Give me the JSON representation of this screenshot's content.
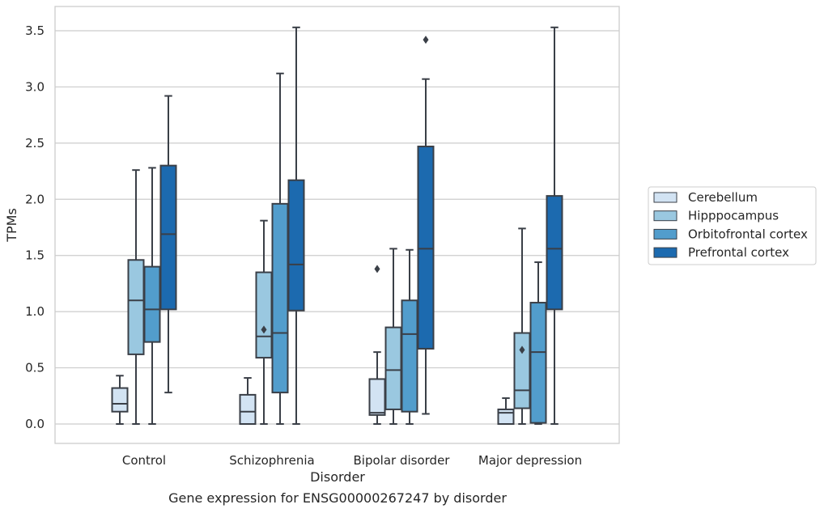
{
  "chart_data": {
    "type": "box",
    "caption": "Gene expression for ENSG00000267247 by disorder",
    "xlabel": "Disorder",
    "ylabel": "TPMs",
    "ylim": [
      -0.17,
      3.72
    ],
    "yticks": [
      0.0,
      0.5,
      1.0,
      1.5,
      2.0,
      2.5,
      3.0,
      3.5
    ],
    "ytick_labels": [
      "0.0",
      "0.5",
      "1.0",
      "1.5",
      "2.0",
      "2.5",
      "3.0",
      "3.5"
    ],
    "grid": "horizontal",
    "legend_position": "right",
    "categories": [
      "Control",
      "Schizophrenia",
      "Bipolar disorder",
      "Major depression"
    ],
    "series": [
      {
        "name": "Cerebellum",
        "color": "#d2e3f3",
        "boxes": [
          {
            "whisker_low": 0.0,
            "q1": 0.11,
            "median": 0.18,
            "q3": 0.32,
            "whisker_high": 0.43,
            "outliers": []
          },
          {
            "whisker_low": 0.0,
            "q1": 0.0,
            "median": 0.11,
            "q3": 0.26,
            "whisker_high": 0.41,
            "outliers": []
          },
          {
            "whisker_low": 0.0,
            "q1": 0.08,
            "median": 0.1,
            "q3": 0.4,
            "whisker_high": 0.64,
            "outliers": [
              1.38
            ]
          },
          {
            "whisker_low": 0.0,
            "q1": 0.0,
            "median": 0.1,
            "q3": 0.13,
            "whisker_high": 0.23,
            "outliers": []
          }
        ]
      },
      {
        "name": "Hipppocampus",
        "color": "#9ac8e0",
        "boxes": [
          {
            "whisker_low": 0.0,
            "q1": 0.62,
            "median": 1.1,
            "q3": 1.46,
            "whisker_high": 2.26,
            "outliers": []
          },
          {
            "whisker_low": 0.0,
            "q1": 0.59,
            "median": 0.78,
            "q3": 1.35,
            "whisker_high": 1.81,
            "outliers": [
              0.84
            ]
          },
          {
            "whisker_low": 0.0,
            "q1": 0.13,
            "median": 0.48,
            "q3": 0.86,
            "whisker_high": 1.56,
            "outliers": []
          },
          {
            "whisker_low": 0.0,
            "q1": 0.14,
            "median": 0.3,
            "q3": 0.81,
            "whisker_high": 1.74,
            "outliers": [
              0.66
            ]
          }
        ]
      },
      {
        "name": "Orbitofrontal cortex",
        "color": "#529dcc",
        "boxes": [
          {
            "whisker_low": 0.0,
            "q1": 0.73,
            "median": 1.02,
            "q3": 1.4,
            "whisker_high": 2.28,
            "outliers": []
          },
          {
            "whisker_low": 0.0,
            "q1": 0.28,
            "median": 0.81,
            "q3": 1.96,
            "whisker_high": 3.12,
            "outliers": []
          },
          {
            "whisker_low": 0.0,
            "q1": 0.11,
            "median": 0.8,
            "q3": 1.1,
            "whisker_high": 1.55,
            "outliers": []
          },
          {
            "whisker_low": 0.0,
            "q1": 0.01,
            "median": 0.64,
            "q3": 1.08,
            "whisker_high": 1.44,
            "outliers": []
          }
        ]
      },
      {
        "name": "Prefrontal cortex",
        "color": "#1c6aaf",
        "boxes": [
          {
            "whisker_low": 0.28,
            "q1": 1.02,
            "median": 1.69,
            "q3": 2.3,
            "whisker_high": 2.92,
            "outliers": []
          },
          {
            "whisker_low": 0.0,
            "q1": 1.01,
            "median": 1.42,
            "q3": 2.17,
            "whisker_high": 3.53,
            "outliers": []
          },
          {
            "whisker_low": 0.09,
            "q1": 0.67,
            "median": 1.56,
            "q3": 2.47,
            "whisker_high": 3.07,
            "outliers": [
              3.42
            ]
          },
          {
            "whisker_low": 0.0,
            "q1": 1.02,
            "median": 1.56,
            "q3": 2.03,
            "whisker_high": 3.53,
            "outliers": []
          }
        ]
      }
    ]
  }
}
